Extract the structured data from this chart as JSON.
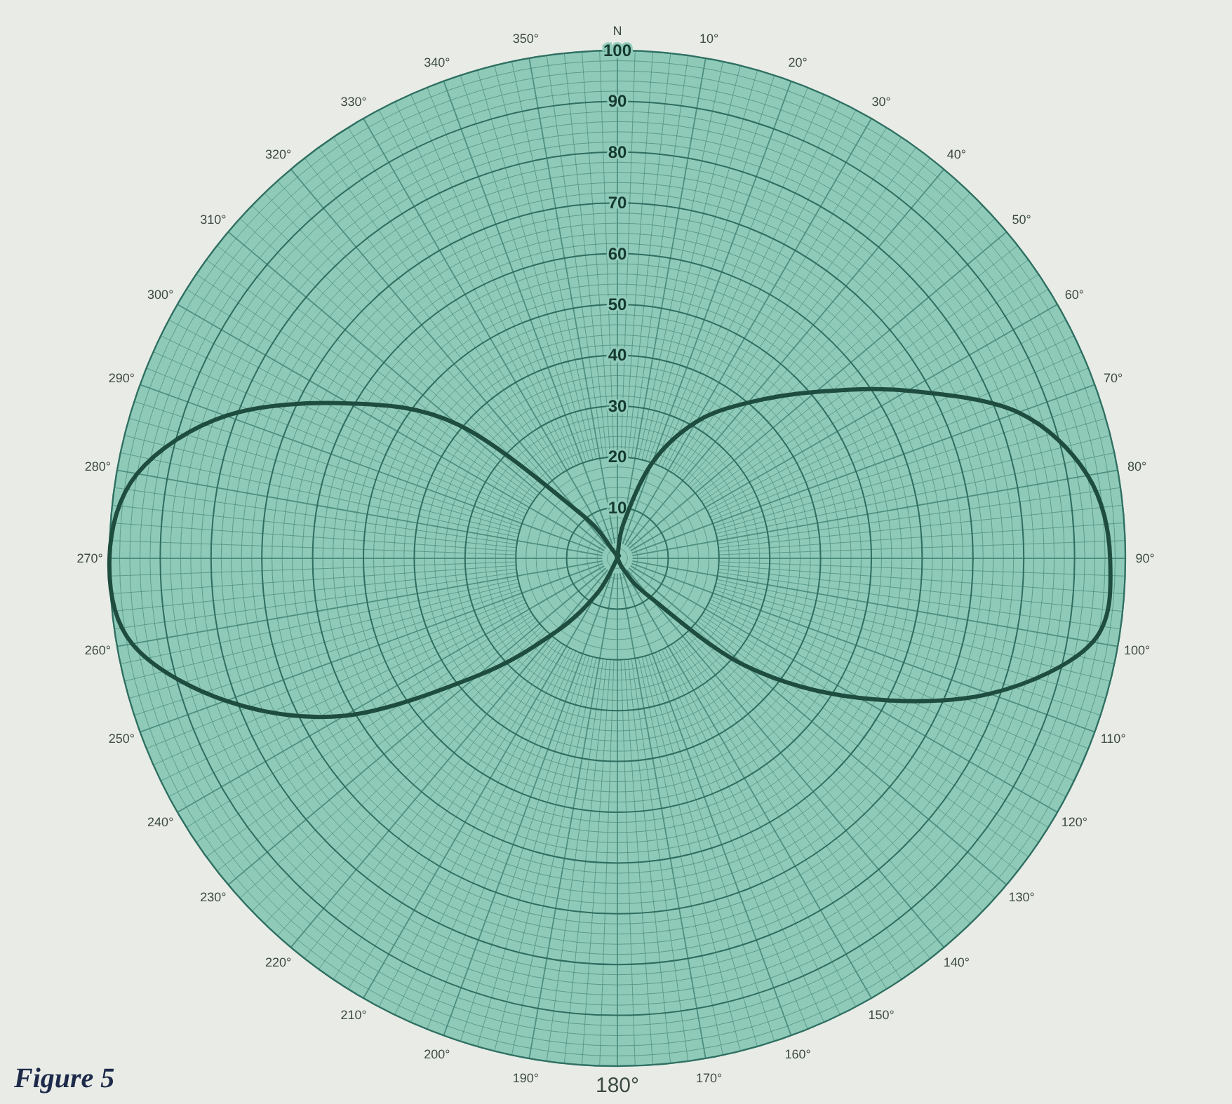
{
  "chart_data": {
    "type": "radar",
    "categories": [
      "N",
      "10°",
      "20°",
      "30°",
      "40°",
      "50°",
      "60°",
      "70°",
      "80°",
      "90°",
      "100°",
      "110°",
      "120°",
      "130°",
      "140°",
      "150°",
      "160°",
      "170°",
      "180°",
      "190°",
      "200°",
      "210°",
      "220°",
      "230°",
      "240°",
      "250°",
      "260°",
      "270°",
      "280°",
      "290°",
      "300°",
      "310°",
      "320°",
      "330°",
      "340°",
      "350°"
    ],
    "series": [
      {
        "color": "#1e4d3f",
        "values": [
          0,
          7,
          20,
          31,
          40,
          51,
          66,
          84,
          94,
          97,
          95,
          78,
          55,
          33,
          10,
          3,
          0,
          0,
          0,
          0,
          0,
          8,
          19,
          36,
          62,
          82,
          97,
          100,
          96,
          82,
          61,
          41,
          12,
          2,
          0,
          0
        ]
      }
    ],
    "ylim": [
      0,
      100
    ],
    "yticks": [
      10,
      20,
      30,
      40,
      50,
      60,
      70,
      80,
      90,
      100
    ],
    "grid": true,
    "marker": "none",
    "line_style": "solid",
    "annotations": [
      "Figure 5"
    ]
  }
}
